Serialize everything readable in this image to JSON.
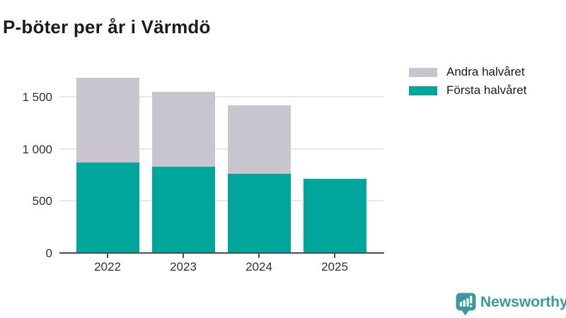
{
  "header": {
    "title": "P-böter per år i Värmdö"
  },
  "chart_data": {
    "type": "bar",
    "stacked": true,
    "title": "P-böter per år i Värmdö",
    "xlabel": "",
    "ylabel": "",
    "categories": [
      "2022",
      "2023",
      "2024",
      "2025"
    ],
    "series": [
      {
        "name": "Första halvåret",
        "color": "#00a59b",
        "values": [
          870,
          830,
          760,
          715
        ]
      },
      {
        "name": "Andra halvåret",
        "color": "#c8c5ce",
        "values": [
          815,
          720,
          660,
          0
        ]
      }
    ],
    "totals": [
      1685,
      1550,
      1420,
      715
    ],
    "ylim": [
      0,
      1700
    ],
    "yticks": [
      {
        "value": 0,
        "label": "0"
      },
      {
        "value": 500,
        "label": "500"
      },
      {
        "value": 1000,
        "label": "1 000"
      },
      {
        "value": 1500,
        "label": "1 500"
      }
    ],
    "grid": true,
    "legend_position": "top-right"
  },
  "legend": {
    "items": [
      {
        "label": "Andra halvåret",
        "color": "#c8c5ce"
      },
      {
        "label": "Första halvåret",
        "color": "#00a59b"
      }
    ]
  },
  "branding": {
    "name": "Newsworthy",
    "color": "#3a999e",
    "icon": "newsworthy-speech-bubble-bar-chart-icon"
  },
  "colors": {
    "first_half": "#00a59b",
    "second_half": "#c8c5ce",
    "gridline": "#e8e7e9",
    "axis": "#4d4d4d",
    "tick_text": "#303030",
    "title_text": "#1d1d18",
    "background": "#ffffff"
  }
}
